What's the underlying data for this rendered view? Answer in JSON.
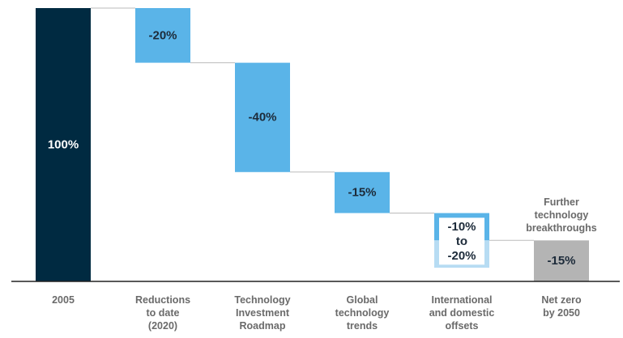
{
  "chart_data": {
    "type": "bar",
    "subtype": "waterfall",
    "title": "",
    "xlabel": "",
    "ylabel": "",
    "ylim": [
      0,
      100
    ],
    "categories": [
      [
        "2005"
      ],
      [
        "Reductions",
        "to date",
        "(2020)"
      ],
      [
        "Technology",
        "Investment",
        "Roadmap"
      ],
      [
        "Global",
        "technology",
        "trends"
      ],
      [
        "International",
        "and domestic",
        "offsets"
      ],
      [
        "Net zero",
        "by 2050"
      ]
    ],
    "steps": [
      {
        "start": 0,
        "end": 100,
        "label": [
          "100%"
        ],
        "kind": "total"
      },
      {
        "start": 100,
        "end": 80,
        "label": [
          "-20%"
        ],
        "kind": "decrease"
      },
      {
        "start": 80,
        "end": 40,
        "label": [
          "-40%"
        ],
        "kind": "decrease"
      },
      {
        "start": 40,
        "end": 25,
        "label": [
          "-15%"
        ],
        "kind": "decrease"
      },
      {
        "start": 25,
        "end": 15,
        "range_end": 5,
        "label": [
          "-10%",
          "to",
          "-20%"
        ],
        "kind": "range"
      },
      {
        "start": 15,
        "end": 0,
        "label": [
          "-15%"
        ],
        "kind": "remaining"
      }
    ],
    "annotation": [
      "Further",
      "technology",
      "breakthroughs"
    ],
    "colors": {
      "total": "#002a41",
      "decrease": "#5ab4e8",
      "range_light": "#b7dcf3",
      "remaining": "#b4b4b4",
      "connector": "#bbbbbb",
      "axis": "#222222"
    }
  }
}
